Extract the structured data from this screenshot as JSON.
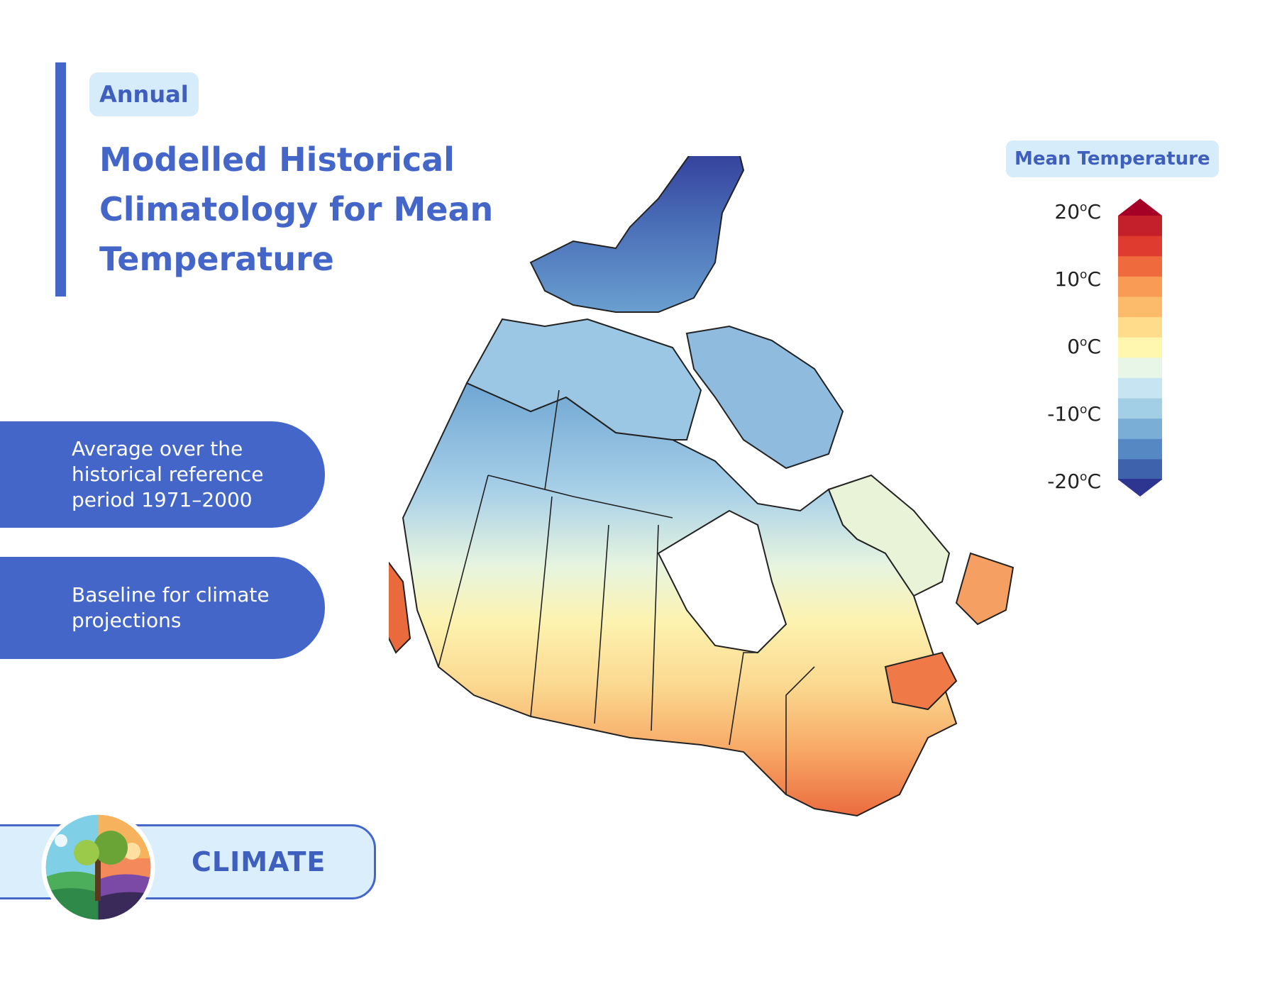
{
  "header": {
    "tag": "Annual",
    "title_lines": [
      "Modelled Historical",
      "Climatology for Mean",
      "Temperature"
    ]
  },
  "info_pills": [
    {
      "lines": [
        "Average over the",
        "historical reference",
        "period 1971–2000"
      ]
    },
    {
      "lines": [
        "Baseline for climate",
        "projections"
      ]
    }
  ],
  "badge": {
    "label": "CLIMATE",
    "icon": "climate-emblem-icon"
  },
  "legend": {
    "title": "Mean Temperature",
    "ticks": [
      {
        "value": "20",
        "unit": "C"
      },
      {
        "value": "10",
        "unit": "C"
      },
      {
        "value": "0",
        "unit": "C"
      },
      {
        "value": "-10",
        "unit": "C"
      },
      {
        "value": "-20",
        "unit": "C"
      }
    ],
    "degree_symbol": "o",
    "colors": [
      "#a50026",
      "#c4202b",
      "#df3b2f",
      "#ef6a3c",
      "#f99a55",
      "#fcbb6a",
      "#fedc8b",
      "#fff6b0",
      "#e8f6e8",
      "#c6e4f2",
      "#a2cee6",
      "#7aaed6",
      "#5689c4",
      "#3f62ad",
      "#2e3590"
    ]
  },
  "map": {
    "region": "Canada",
    "color_scale": "mean-temperature"
  }
}
